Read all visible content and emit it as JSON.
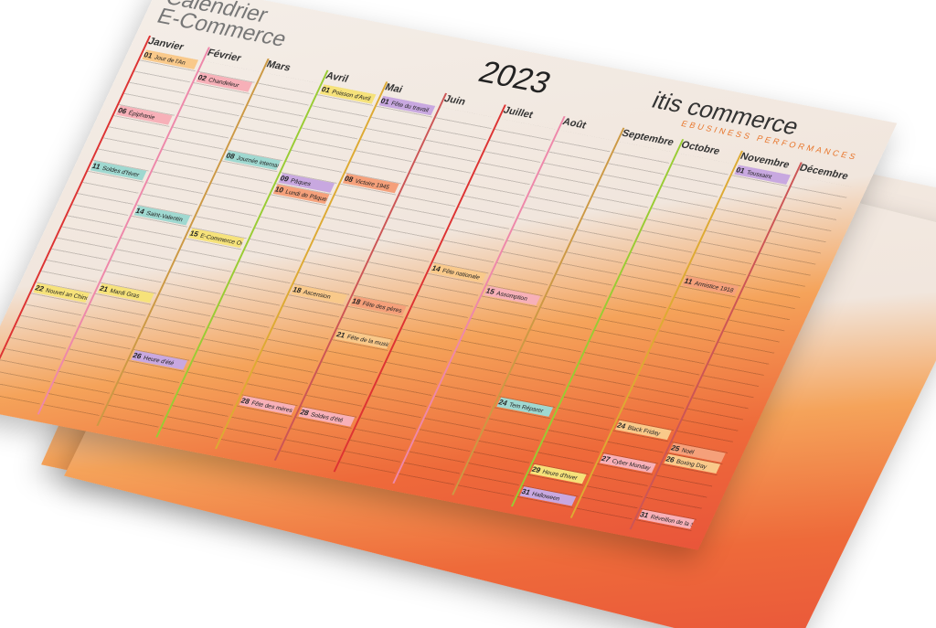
{
  "header": {
    "title_line1": "Calendrier",
    "title_line2": "E-Commerce",
    "year": "2023",
    "brand": "itis commerce",
    "tagline": "EBUSINESS PERFORMANCES"
  },
  "months": [
    {
      "name": "Janvier",
      "events": [
        {
          "day": "01",
          "label": "Jour de l'An"
        },
        {
          "day": "06",
          "label": "Épiphanie"
        },
        {
          "day": "11",
          "label": "Soldes d'hiver"
        },
        {
          "day": "22",
          "label": "Nouvel an Chinois"
        }
      ]
    },
    {
      "name": "Février",
      "events": [
        {
          "day": "02",
          "label": "Chandeleur"
        },
        {
          "day": "14",
          "label": "Saint-Valentin"
        },
        {
          "day": "21",
          "label": "Mardi Gras"
        }
      ]
    },
    {
      "name": "Mars",
      "events": [
        {
          "day": "08",
          "label": "Journée internationale des droits des femmes"
        },
        {
          "day": "15",
          "label": "E-Commerce One to One"
        },
        {
          "day": "26",
          "label": "Heure d'été"
        }
      ]
    },
    {
      "name": "Avril",
      "events": [
        {
          "day": "01",
          "label": "Poisson d'Avril"
        },
        {
          "day": "09",
          "label": "Pâques"
        },
        {
          "day": "10",
          "label": "Lundi de Pâques"
        }
      ]
    },
    {
      "name": "Mai",
      "events": [
        {
          "day": "01",
          "label": "Fête du travail"
        },
        {
          "day": "08",
          "label": "Victoire 1945"
        },
        {
          "day": "18",
          "label": "Ascension"
        },
        {
          "day": "28",
          "label": "Fête des mères"
        }
      ]
    },
    {
      "name": "Juin",
      "events": [
        {
          "day": "18",
          "label": "Fête des pères"
        },
        {
          "day": "21",
          "label": "Fête de la musique"
        },
        {
          "day": "28",
          "label": "Soldes d'été"
        }
      ]
    },
    {
      "name": "Juillet",
      "events": [
        {
          "day": "14",
          "label": "Fête nationale"
        }
      ]
    },
    {
      "name": "Août",
      "events": [
        {
          "day": "15",
          "label": "Assomption"
        }
      ]
    },
    {
      "name": "Septembre",
      "events": [
        {
          "day": "24",
          "label": "Tem Réparer"
        }
      ]
    },
    {
      "name": "Octobre",
      "events": [
        {
          "day": "29",
          "label": "Heure d'hiver"
        },
        {
          "day": "31",
          "label": "Halloween"
        }
      ]
    },
    {
      "name": "Novembre",
      "events": [
        {
          "day": "01",
          "label": "Toussaint"
        },
        {
          "day": "11",
          "label": "Armistice 1918"
        },
        {
          "day": "24",
          "label": "Black Friday"
        },
        {
          "day": "27",
          "label": "Cyber Monday"
        }
      ]
    },
    {
      "name": "Décembre",
      "events": [
        {
          "day": "25",
          "label": "Noël"
        },
        {
          "day": "26",
          "label": "Boxing Day"
        },
        {
          "day": "31",
          "label": "Réveillon de la Saint-Sylvestre"
        }
      ]
    }
  ]
}
